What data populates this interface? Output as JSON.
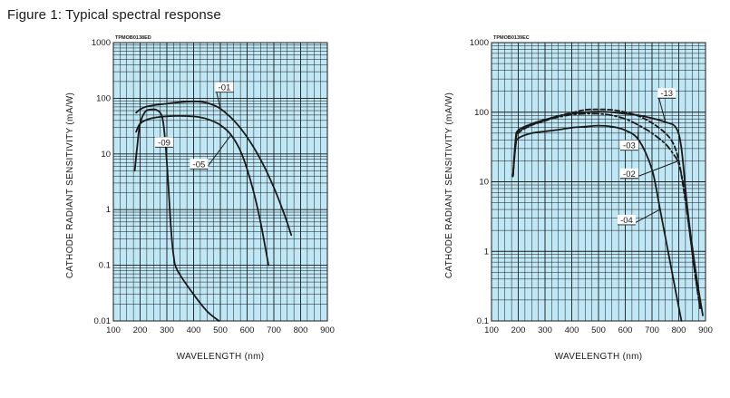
{
  "figure_title": "Figure 1: Typical spectral response",
  "chart_data": [
    {
      "type": "line",
      "code": "TPMOB0138ED",
      "xlabel": "WAVELENGTH (nm)",
      "ylabel": "CATHODE RADIANT SENSITIVITY (mA/W)",
      "xlim": [
        100,
        900
      ],
      "ylim": [
        0.01,
        1000
      ],
      "yscale": "log",
      "grid": true,
      "background": "#bfe7f5",
      "xticks": [
        "100",
        "200",
        "300",
        "400",
        "500",
        "600",
        "700",
        "800",
        "900"
      ],
      "yticks": [
        {
          "value": 0.01,
          "label": "0.01"
        },
        {
          "value": 0.1,
          "label": "0.1"
        },
        {
          "value": 1,
          "label": "1"
        },
        {
          "value": 10,
          "label": "10"
        },
        {
          "value": 100,
          "label": "100"
        },
        {
          "value": 1000,
          "label": "1000"
        }
      ],
      "series": [
        {
          "name": "-01",
          "style": "solid",
          "x": [
            185,
            200,
            220,
            250,
            300,
            350,
            400,
            430,
            460,
            500,
            550,
            600,
            650,
            700,
            740,
            765
          ],
          "y": [
            55,
            63,
            70,
            75,
            80,
            85,
            88,
            86,
            80,
            65,
            40,
            20,
            8,
            2.5,
            0.8,
            0.35
          ]
        },
        {
          "name": "-05",
          "style": "solid",
          "x": [
            185,
            200,
            230,
            270,
            320,
            370,
            420,
            460,
            500,
            540,
            580,
            620,
            650,
            680
          ],
          "y": [
            25,
            35,
            42,
            46,
            48,
            48,
            46,
            41,
            33,
            22,
            10,
            2.5,
            0.6,
            0.1
          ]
        },
        {
          "name": "-09",
          "style": "solid",
          "x": [
            180,
            190,
            200,
            220,
            245,
            260,
            275,
            285,
            295,
            305,
            315,
            325,
            340,
            400,
            450,
            495
          ],
          "y": [
            5,
            15,
            35,
            58,
            63,
            62,
            55,
            40,
            15,
            3,
            0.5,
            0.15,
            0.08,
            0.03,
            0.015,
            0.01
          ]
        }
      ],
      "annotations": [
        {
          "text": "-01",
          "x": 515,
          "y": 155
        },
        {
          "text": "-09",
          "x": 290,
          "y": 16
        },
        {
          "text": "-05",
          "x": 420,
          "y": 6.5
        }
      ]
    },
    {
      "type": "line",
      "code": "TPMOB0139EC",
      "xlabel": "WAVELENGTH (nm)",
      "ylabel": "CATHODE RADIANT SENSITIVITY (mA/W)",
      "xlim": [
        100,
        900
      ],
      "ylim": [
        0.1,
        1000
      ],
      "yscale": "log",
      "grid": true,
      "background": "#bfe7f5",
      "xticks": [
        "100",
        "200",
        "300",
        "400",
        "500",
        "600",
        "700",
        "800",
        "900"
      ],
      "yticks": [
        {
          "value": 0.1,
          "label": "0.1"
        },
        {
          "value": 1,
          "label": "1"
        },
        {
          "value": 10,
          "label": "10"
        },
        {
          "value": 100,
          "label": "100"
        },
        {
          "value": 1000,
          "label": "1000"
        }
      ],
      "series": [
        {
          "name": "-13",
          "style": "solid",
          "x": [
            180,
            190,
            200,
            250,
            300,
            350,
            400,
            450,
            500,
            550,
            600,
            650,
            700,
            750,
            790,
            810,
            830,
            850,
            870,
            890
          ],
          "y": [
            12,
            40,
            55,
            68,
            78,
            88,
            95,
            100,
            102,
            100,
            95,
            90,
            82,
            72,
            60,
            30,
            5,
            1.2,
            0.35,
            0.12
          ]
        },
        {
          "name": "-03",
          "style": "dashdot",
          "x": [
            180,
            190,
            200,
            250,
            300,
            350,
            400,
            450,
            500,
            550,
            600,
            650,
            700,
            750,
            780,
            800,
            820,
            840,
            860,
            880
          ],
          "y": [
            12,
            38,
            52,
            66,
            76,
            85,
            92,
            95,
            95,
            90,
            80,
            65,
            50,
            35,
            25,
            18,
            8,
            2,
            0.5,
            0.15
          ]
        },
        {
          "name": "-02",
          "style": "dashed",
          "x": [
            180,
            190,
            200,
            250,
            300,
            350,
            400,
            450,
            500,
            550,
            600,
            650,
            700,
            750,
            780,
            800,
            820,
            840,
            860,
            880
          ],
          "y": [
            12,
            35,
            50,
            65,
            75,
            88,
            98,
            108,
            110,
            108,
            100,
            88,
            70,
            50,
            35,
            20,
            7,
            2,
            0.5,
            0.15
          ]
        },
        {
          "name": "-04",
          "style": "solid",
          "x": [
            180,
            190,
            200,
            250,
            300,
            350,
            400,
            450,
            500,
            550,
            600,
            650,
            700,
            730,
            760,
            790,
            810
          ],
          "y": [
            12,
            32,
            42,
            50,
            53,
            56,
            60,
            62,
            64,
            62,
            55,
            40,
            15,
            4,
            1,
            0.25,
            0.1
          ]
        }
      ],
      "annotations": [
        {
          "text": "-13",
          "x": 755,
          "y": 185
        },
        {
          "text": "-03",
          "x": 615,
          "y": 33
        },
        {
          "text": "-02",
          "x": 615,
          "y": 13
        },
        {
          "text": "-04",
          "x": 605,
          "y": 2.8
        }
      ]
    }
  ]
}
